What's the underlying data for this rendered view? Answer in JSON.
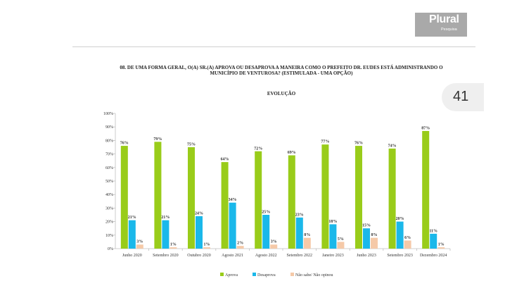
{
  "header": {
    "logo_text": "Plural",
    "logo_sub": "Pesquisa",
    "question": "08. DE UMA FORMA GERAL, O(A) SR.(A) APROVA OU DESAPROVA A MANEIRA COMO O PREFEITO DR. EUDES ESTÁ ADMINISTRANDO O MUNICÍPIO DE VENTUROSA? (ESTIMULADA - UMA OPÇÃO)",
    "subtitle": "EVOLUÇÃO",
    "page_number": "41"
  },
  "colors": {
    "aprova": "#99cc1a",
    "desaprova": "#1ab8ea",
    "nao_sabe": "#f5c9a8"
  },
  "chart_data": {
    "type": "bar",
    "categories": [
      "Junho 2020",
      "Setembro 2020",
      "Outubro 2020",
      "Agosto 2021",
      "Agosto 2022",
      "Setembro 2022",
      "Janeiro 2023",
      "Junho 2023",
      "Setembro 2023",
      "Dezembro 2024"
    ],
    "series": [
      {
        "name": "Aprova",
        "values": [
          76,
          79,
          75,
          64,
          72,
          69,
          77,
          76,
          74,
          87
        ]
      },
      {
        "name": "Desaprova",
        "values": [
          21,
          21,
          24,
          34,
          25,
          23,
          18,
          15,
          20,
          11
        ]
      },
      {
        "name": "Não sabe/ Não opinou",
        "values": [
          3,
          1,
          1,
          2,
          3,
          8,
          5,
          8,
          6,
          1
        ]
      }
    ],
    "yticks": [
      "0%",
      "10%",
      "20%",
      "30%",
      "40%",
      "50%",
      "60%",
      "70%",
      "80%",
      "90%",
      "100%"
    ],
    "ylim": [
      0,
      100
    ],
    "value_suffix": "%",
    "legend_position": "bottom",
    "grid": false
  }
}
